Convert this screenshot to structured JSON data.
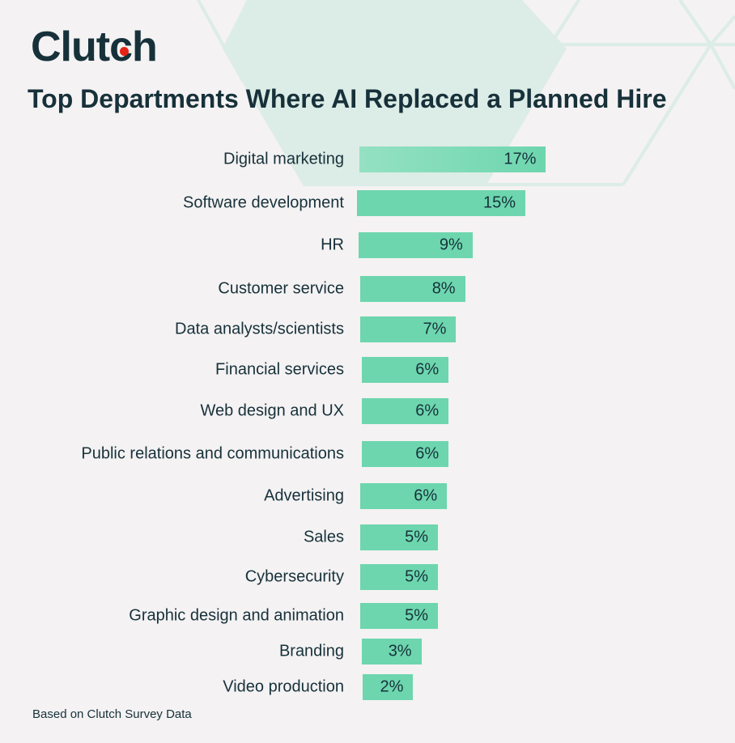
{
  "brand": {
    "logo_text": "Clutch",
    "accent_color": "#e62415"
  },
  "chart_data": {
    "type": "bar",
    "orientation": "horizontal",
    "title": "Top Departments Where AI Replaced a Planned Hire",
    "categories": [
      "Digital marketing",
      "Software development",
      "HR",
      "Customer service",
      "Data analysts/scientists",
      "Financial services",
      "Web design and UX",
      "Public relations and communications",
      "Advertising",
      "Sales",
      "Cybersecurity",
      "Graphic design and animation",
      "Branding",
      "Video production"
    ],
    "values": [
      17,
      15,
      9,
      8,
      7,
      6,
      6,
      6,
      6,
      5,
      5,
      5,
      3,
      2
    ],
    "value_labels": [
      "17%",
      "15%",
      "9%",
      "8%",
      "7%",
      "6%",
      "6%",
      "6%",
      "6%",
      "5%",
      "5%",
      "5%",
      "3%",
      "2%"
    ],
    "unit": "%",
    "bar_color": "#6dd6ae",
    "grid": false
  },
  "footer": "Based on Clutch Survey Data"
}
